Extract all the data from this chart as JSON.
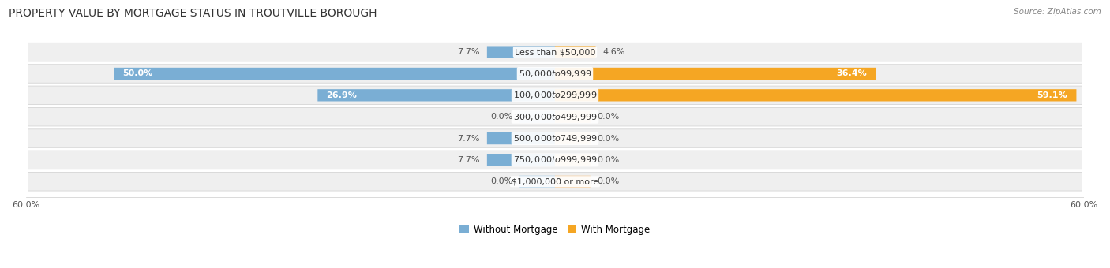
{
  "title": "PROPERTY VALUE BY MORTGAGE STATUS IN TROUTVILLE BOROUGH",
  "source": "Source: ZipAtlas.com",
  "categories": [
    "Less than $50,000",
    "$50,000 to $99,999",
    "$100,000 to $299,999",
    "$300,000 to $499,999",
    "$500,000 to $749,999",
    "$750,000 to $999,999",
    "$1,000,000 or more"
  ],
  "without_mortgage": [
    7.7,
    50.0,
    26.9,
    0.0,
    7.7,
    7.7,
    0.0
  ],
  "with_mortgage": [
    4.6,
    36.4,
    59.1,
    0.0,
    0.0,
    0.0,
    0.0
  ],
  "max_val": 60.0,
  "color_without": "#7aaed4",
  "color_with": "#f5a623",
  "color_without_light": "#b8d4e8",
  "color_with_light": "#f5cfa0",
  "bar_height": 0.62,
  "row_bg_color": "#efefef",
  "row_border_color": "#d5d5d5",
  "title_fontsize": 10,
  "label_fontsize": 8,
  "category_fontsize": 8,
  "axis_label_fontsize": 8,
  "legend_fontsize": 8.5,
  "stub_size": 4.0
}
